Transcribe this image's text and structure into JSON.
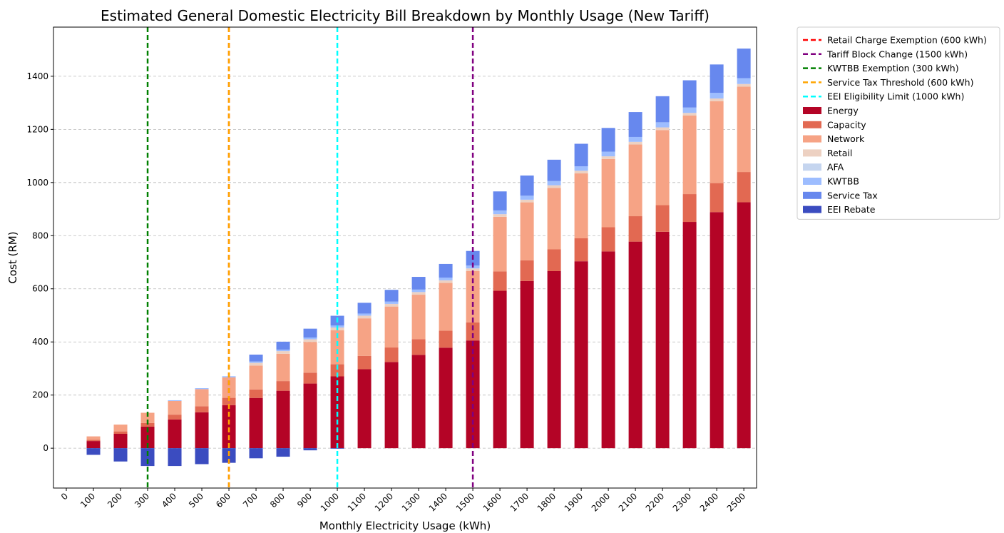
{
  "chart_data": {
    "type": "stacked_bar",
    "title": "Estimated General Domestic Electricity Bill Breakdown by Monthly Usage (New Tariff)",
    "x_label": "Monthly Electricity Usage (kWh)",
    "y_label": "Cost (RM)",
    "x": [
      100,
      200,
      300,
      400,
      500,
      600,
      700,
      800,
      900,
      1000,
      1100,
      1200,
      1300,
      1400,
      1500,
      1600,
      1700,
      1800,
      1900,
      2000,
      2100,
      2200,
      2300,
      2400,
      2500
    ],
    "bar_width": 50,
    "series": [
      {
        "name": "Energy",
        "color": "#b40426",
        "values": [
          27.0,
          54.1,
          81.1,
          108.1,
          135.2,
          162.2,
          189.2,
          216.2,
          243.3,
          270.3,
          297.3,
          324.4,
          351.4,
          378.4,
          405.5,
          592.5,
          629.5,
          666.5,
          703.6,
          740.6,
          777.6,
          814.7,
          851.7,
          888.7,
          925.8
        ]
      },
      {
        "name": "Capacity",
        "color": "#e26952",
        "values": [
          4.6,
          9.1,
          13.7,
          18.2,
          22.8,
          27.3,
          31.9,
          36.4,
          41.0,
          45.5,
          50.1,
          54.6,
          59.2,
          63.7,
          68.3,
          72.8,
          77.4,
          81.9,
          86.5,
          91.0,
          95.6,
          100.1,
          104.7,
          109.2,
          113.8
        ]
      },
      {
        "name": "Network",
        "color": "#f6a385",
        "values": [
          12.9,
          25.7,
          38.6,
          51.4,
          64.3,
          77.1,
          90.0,
          102.8,
          115.7,
          128.5,
          141.4,
          154.2,
          167.1,
          179.9,
          192.8,
          205.6,
          218.5,
          231.3,
          244.2,
          257.0,
          269.9,
          282.7,
          295.6,
          308.4,
          321.3
        ]
      },
      {
        "name": "Retail",
        "color": "#edd1c2",
        "values": [
          0,
          0,
          0,
          0,
          0,
          0,
          10,
          10,
          10,
          10,
          10,
          10,
          10,
          10,
          10,
          10,
          10,
          10,
          10,
          10,
          10,
          10,
          10,
          10,
          10
        ]
      },
      {
        "name": "AFA",
        "color": "#c5d5ef",
        "values": [
          0,
          0,
          0,
          0,
          0,
          0,
          0,
          0,
          0,
          0,
          0,
          0,
          0,
          0,
          0,
          0,
          0,
          0,
          0,
          0,
          0,
          0,
          0,
          0,
          0
        ]
      },
      {
        "name": "KWTBB",
        "color": "#9dbdff",
        "values": [
          0,
          0,
          0,
          2.8,
          3.6,
          4.3,
          5.1,
          5.8,
          6.6,
          7.3,
          8.0,
          8.7,
          9.4,
          10.1,
          10.8,
          14.1,
          15.0,
          15.8,
          16.7,
          17.6,
          18.4,
          19.3,
          20.2,
          21.1,
          21.9
        ]
      },
      {
        "name": "Service Tax",
        "color": "#6788ee",
        "values": [
          0,
          0,
          0,
          0,
          0,
          0,
          26.1,
          29.7,
          33.3,
          36.9,
          40.5,
          44.2,
          47.8,
          51.4,
          55.0,
          71.6,
          76.0,
          80.4,
          84.9,
          89.3,
          93.7,
          98.1,
          102.6,
          107.0,
          111.4
        ]
      },
      {
        "name": "EEI Rebate",
        "color": "#3b4cc0",
        "values": [
          -25,
          -50,
          -67,
          -67,
          -60,
          -55,
          -38,
          -32,
          -8,
          -2,
          0,
          0,
          0,
          0,
          0,
          0,
          0,
          0,
          0,
          0,
          0,
          0,
          0,
          0,
          0
        ]
      }
    ],
    "vlines": [
      {
        "name": "Retail Charge Exemption (600 kWh)",
        "x": 600,
        "color": "#ff0000"
      },
      {
        "name": "Tariff Block Change (1500 kWh)",
        "x": 1500,
        "color": "#800080"
      },
      {
        "name": "KWTBB Exemption (300 kWh)",
        "x": 300,
        "color": "#008000"
      },
      {
        "name": "Service Tax Threshold (600 kWh)",
        "x": 600,
        "color": "#ffa500"
      },
      {
        "name": "EEI Eligibility Limit (1000 kWh)",
        "x": 1000,
        "color": "#00ffff"
      }
    ],
    "xlim": [
      -47.4,
      2547
    ],
    "ylim": [
      -150,
      1585
    ],
    "xticks": [
      0,
      100,
      200,
      300,
      400,
      500,
      600,
      700,
      800,
      900,
      1000,
      1100,
      1200,
      1300,
      1400,
      1500,
      1600,
      1700,
      1800,
      1900,
      2000,
      2100,
      2200,
      2300,
      2400,
      2500
    ],
    "yticks": [
      0,
      200,
      400,
      600,
      800,
      1000,
      1200,
      1400
    ],
    "grid": true,
    "legend": "outside upper right"
  }
}
